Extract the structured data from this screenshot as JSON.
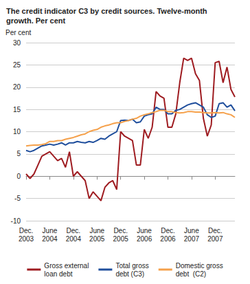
{
  "chart_data": {
    "type": "line",
    "title": "The credit indicator C3 by credit sources. Twelve-month\ngrowth. Per cent",
    "y_label": "Per cent",
    "categories": [
      "Dec.\n2003",
      null,
      null,
      null,
      null,
      null,
      "June\n2004",
      null,
      null,
      null,
      null,
      null,
      "Dec.\n2004",
      null,
      null,
      null,
      null,
      null,
      "June\n2005",
      null,
      null,
      null,
      null,
      null,
      "Dec.\n2005",
      null,
      null,
      null,
      null,
      null,
      "June\n2006",
      null,
      null,
      null,
      null,
      null,
      "Dec.\n2006",
      null,
      null,
      null,
      null,
      null,
      "June\n2007",
      null,
      null,
      null,
      null,
      null,
      "Dec.\n2007",
      null,
      null,
      null,
      null,
      null
    ],
    "series": [
      {
        "name": "Gross external\nloan debt",
        "color": "#9e1b20",
        "values": [
          0.5,
          -0.5,
          0.5,
          2.5,
          4.5,
          5,
          5.5,
          4.5,
          3.5,
          4,
          2,
          5.5,
          0,
          1,
          0,
          -1,
          -5,
          -3.5,
          -4.5,
          -5.5,
          -2.5,
          -1.5,
          -1,
          -3,
          10,
          9,
          8.5,
          8,
          2.5,
          2.5,
          10.5,
          8.5,
          11,
          19,
          18,
          17.5,
          11,
          11,
          14,
          21,
          26.5,
          26,
          26.5,
          23,
          21.5,
          13,
          9,
          11.5,
          25.5,
          25.8,
          21,
          24.5,
          19.5,
          17.8
        ]
      },
      {
        "name": "Total gross\ndebt (C3)",
        "color": "#1f4e9c",
        "values": [
          5.8,
          5.5,
          5.8,
          6.3,
          6.8,
          7,
          7.2,
          7,
          7.2,
          7.5,
          7,
          7.5,
          7.5,
          7.8,
          7.6,
          7.5,
          7.8,
          7.6,
          8,
          8.5,
          8.3,
          9,
          9.5,
          10,
          12.5,
          12.6,
          12.5,
          12.8,
          12,
          12.2,
          13.5,
          13.8,
          14,
          15.5,
          15,
          15,
          14,
          14,
          14.8,
          15,
          15.5,
          16,
          16.3,
          16.5,
          16,
          15.5,
          13.8,
          13.2,
          13.5,
          16.3,
          16.5,
          15.5,
          16,
          14.7
        ]
      },
      {
        "name": "Domestic gross\ndebt  (C2)",
        "color": "#f5a04a",
        "values": [
          6.8,
          6.9,
          7,
          7,
          7.1,
          7.3,
          7.8,
          7.8,
          8,
          8,
          8.3,
          8.5,
          8.7,
          9,
          9.3,
          9.5,
          10,
          10.3,
          10.5,
          11,
          11.3,
          11.5,
          11.8,
          12,
          12,
          12.3,
          12.5,
          12.8,
          13,
          13.5,
          13.8,
          14,
          14.3,
          14.5,
          14.8,
          14.8,
          14.5,
          14.5,
          14.3,
          14.2,
          14.3,
          14.5,
          14.5,
          14.4,
          14.4,
          14.3,
          14.2,
          14.2,
          14.3,
          14.2,
          14.3,
          14,
          13.8,
          13.2
        ]
      }
    ],
    "ylim": [
      -10,
      30
    ],
    "yticks": [
      -10,
      -5,
      0,
      5,
      10,
      15,
      20,
      25,
      30
    ],
    "grid": true,
    "legend": "bottom"
  }
}
